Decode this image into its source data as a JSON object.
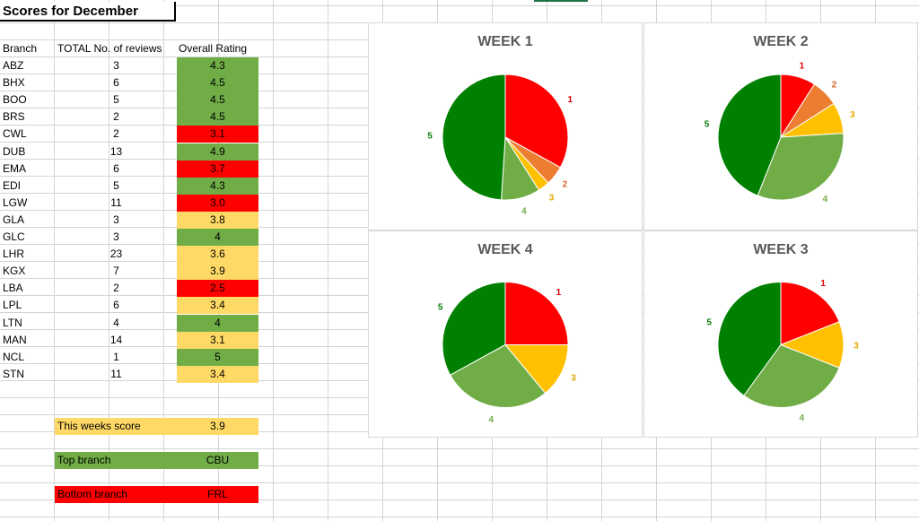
{
  "sheet": {
    "title": "Scores for December",
    "headers": {
      "branch": "Branch",
      "reviews": "TOTAL No. of reviews",
      "rating": "Overall Rating"
    },
    "rows": [
      {
        "branch": "ABZ",
        "reviews": "3",
        "rating": "4.3",
        "status": "green"
      },
      {
        "branch": "BHX",
        "reviews": "6",
        "rating": "4.5",
        "status": "green"
      },
      {
        "branch": "BOO",
        "reviews": "5",
        "rating": "4.5",
        "status": "green"
      },
      {
        "branch": "BRS",
        "reviews": "2",
        "rating": "4.5",
        "status": "green"
      },
      {
        "branch": "CWL",
        "reviews": "2",
        "rating": "3.1",
        "status": "red"
      },
      {
        "branch": "DUB",
        "reviews": "13",
        "rating": "4.9",
        "status": "green"
      },
      {
        "branch": "EMA",
        "reviews": "6",
        "rating": "3.7",
        "status": "red"
      },
      {
        "branch": "EDI",
        "reviews": "5",
        "rating": "4.3",
        "status": "green"
      },
      {
        "branch": "LGW",
        "reviews": "11",
        "rating": "3.0",
        "status": "red"
      },
      {
        "branch": "GLA",
        "reviews": "3",
        "rating": "3.8",
        "status": "amber"
      },
      {
        "branch": "GLC",
        "reviews": "3",
        "rating": "4",
        "status": "green"
      },
      {
        "branch": "LHR",
        "reviews": "23",
        "rating": "3.6",
        "status": "amber"
      },
      {
        "branch": "KGX",
        "reviews": "7",
        "rating": "3.9",
        "status": "amber"
      },
      {
        "branch": "LBA",
        "reviews": "2",
        "rating": "2.5",
        "status": "red"
      },
      {
        "branch": "LPL",
        "reviews": "6",
        "rating": "3.4",
        "status": "amber"
      },
      {
        "branch": "LTN",
        "reviews": "4",
        "rating": "4",
        "status": "green"
      },
      {
        "branch": "MAN",
        "reviews": "14",
        "rating": "3.1",
        "status": "amber"
      },
      {
        "branch": "NCL",
        "reviews": "1",
        "rating": "5",
        "status": "green"
      },
      {
        "branch": "STN",
        "reviews": "11",
        "rating": "3.4",
        "status": "amber"
      }
    ],
    "summary": [
      {
        "label": "This weeks score",
        "value": "3.9",
        "status": "amber"
      },
      {
        "label": "Top branch",
        "value": "CBU",
        "status": "green"
      },
      {
        "label": "Bottom branch",
        "value": "FRL",
        "status": "red"
      }
    ]
  },
  "colors": {
    "green": "#70ad47",
    "red": "#ff0000",
    "amber": "#ffd966"
  },
  "chart_data": [
    {
      "type": "pie",
      "title": "WEEK 1",
      "slices": [
        {
          "label": "1",
          "value": 33,
          "color": "#ff0000"
        },
        {
          "label": "2",
          "value": 5,
          "color": "#ed7d31"
        },
        {
          "label": "3",
          "value": 3,
          "color": "#ffc000"
        },
        {
          "label": "4",
          "value": 10,
          "color": "#70ad47"
        },
        {
          "label": "5",
          "value": 49,
          "color": "#008000"
        }
      ]
    },
    {
      "type": "pie",
      "title": "WEEK 2",
      "slices": [
        {
          "label": "1",
          "value": 9,
          "color": "#ff0000"
        },
        {
          "label": "2",
          "value": 7,
          "color": "#ed7d31"
        },
        {
          "label": "3",
          "value": 8,
          "color": "#ffc000"
        },
        {
          "label": "4",
          "value": 32,
          "color": "#70ad47"
        },
        {
          "label": "5",
          "value": 44,
          "color": "#008000"
        }
      ]
    },
    {
      "type": "pie",
      "title": "WEEK 4",
      "slices": [
        {
          "label": "1",
          "value": 25,
          "color": "#ff0000"
        },
        {
          "label": "3",
          "value": 14,
          "color": "#ffc000"
        },
        {
          "label": "4",
          "value": 28,
          "color": "#70ad47"
        },
        {
          "label": "5",
          "value": 33,
          "color": "#008000"
        }
      ]
    },
    {
      "type": "pie",
      "title": "WEEK 3",
      "slices": [
        {
          "label": "1",
          "value": 19,
          "color": "#ff0000"
        },
        {
          "label": "3",
          "value": 12,
          "color": "#ffc000"
        },
        {
          "label": "4",
          "value": 29,
          "color": "#70ad47"
        },
        {
          "label": "5",
          "value": 40,
          "color": "#008000"
        }
      ]
    }
  ]
}
